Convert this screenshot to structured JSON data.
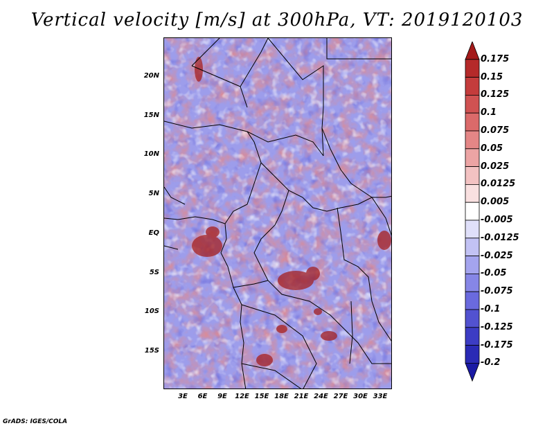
{
  "title": "Vertical velocity [m/s] at 300hPa, VT: 2019120103",
  "footer": "GrADS: IGES/COLA",
  "y_axis_labels": [
    "20N",
    "15N",
    "10N",
    "5N",
    "EQ",
    "5S",
    "10S",
    "15S"
  ],
  "x_axis_labels": [
    "3E",
    "6E",
    "9E",
    "12E",
    "15E",
    "18E",
    "21E",
    "24E",
    "27E",
    "30E",
    "33E"
  ],
  "colorbar": {
    "labels": [
      "0.175",
      "0.15",
      "0.125",
      "0.1",
      "0.075",
      "0.05",
      "0.025",
      "0.0125",
      "0.005",
      "-0.005",
      "-0.0125",
      "-0.025",
      "-0.05",
      "-0.075",
      "-0.1",
      "-0.125",
      "-0.175",
      "-0.2"
    ],
    "colors": [
      "#a41a1a",
      "#b52a2a",
      "#c43c3c",
      "#d05252",
      "#db6a6a",
      "#e48686",
      "#eca4a4",
      "#f3c2c2",
      "#f9e0e0",
      "#ffffff",
      "#e0e0fa",
      "#c2c2f4",
      "#a4a4ee",
      "#8686e6",
      "#6a6ade",
      "#5252d0",
      "#3c3cc4",
      "#2a2ab5",
      "#1a1aa4"
    ]
  },
  "map": {
    "field": "vertical velocity",
    "level": "300hPa",
    "lon_range": [
      0,
      35
    ],
    "lat_range": [
      -20,
      25
    ]
  }
}
